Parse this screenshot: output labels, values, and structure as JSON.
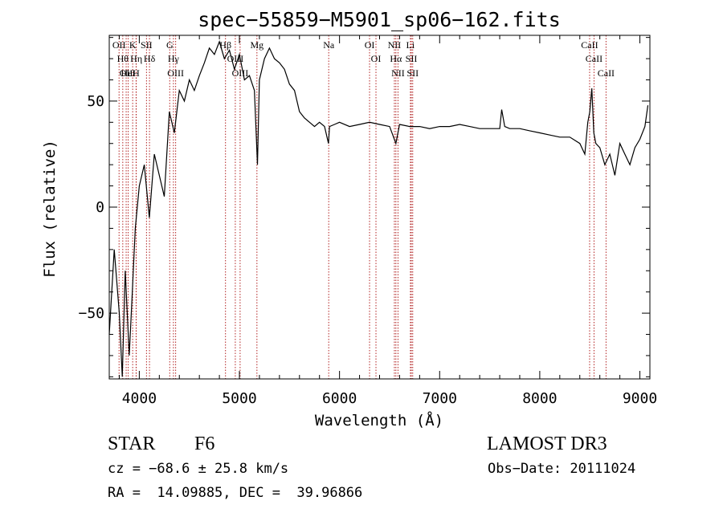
{
  "chart_data": {
    "type": "line",
    "title": "spec−55859−M5901_sp06−162.fits",
    "xlabel": "Wavelength (Å)",
    "ylabel": "Flux (relative)",
    "xlim": [
      3700,
      9100
    ],
    "ylim": [
      -81,
      81
    ],
    "xticks": [
      4000,
      5000,
      6000,
      7000,
      8000,
      9000
    ],
    "xtick_labels": [
      "4000",
      "5000",
      "6000",
      "7000",
      "8000",
      "9000"
    ],
    "yticks": [
      -50,
      0,
      50
    ],
    "ytick_labels": [
      "−50",
      "0",
      "50"
    ],
    "series": [
      {
        "name": "spectrum",
        "x": [
          3700,
          3750,
          3800,
          3830,
          3860,
          3900,
          3930,
          3960,
          4000,
          4050,
          4100,
          4150,
          4200,
          4250,
          4300,
          4350,
          4400,
          4450,
          4500,
          4550,
          4600,
          4650,
          4700,
          4750,
          4800,
          4850,
          4900,
          4950,
          5000,
          5050,
          5100,
          5150,
          5180,
          5200,
          5250,
          5300,
          5350,
          5400,
          5450,
          5500,
          5550,
          5600,
          5650,
          5700,
          5750,
          5800,
          5850,
          5890,
          5900,
          5950,
          6000,
          6100,
          6200,
          6300,
          6400,
          6500,
          6563,
          6600,
          6700,
          6800,
          6900,
          7000,
          7100,
          7200,
          7300,
          7400,
          7500,
          7600,
          7620,
          7650,
          7700,
          7800,
          7900,
          8000,
          8100,
          8200,
          8300,
          8400,
          8450,
          8480,
          8500,
          8520,
          8540,
          8560,
          8600,
          8650,
          8700,
          8750,
          8800,
          8850,
          8900,
          8950,
          9000,
          9050,
          9080
        ],
        "y": [
          -60,
          -20,
          -50,
          -80,
          -30,
          -70,
          -40,
          -10,
          10,
          20,
          -5,
          25,
          15,
          5,
          45,
          35,
          55,
          50,
          60,
          55,
          62,
          68,
          75,
          72,
          78,
          70,
          74,
          65,
          72,
          60,
          62,
          55,
          20,
          60,
          70,
          75,
          70,
          68,
          65,
          58,
          55,
          45,
          42,
          40,
          38,
          40,
          38,
          30,
          38,
          39,
          40,
          38,
          39,
          40,
          39,
          38,
          30,
          39,
          38,
          38,
          37,
          38,
          38,
          39,
          38,
          37,
          37,
          37,
          46,
          38,
          37,
          37,
          36,
          35,
          34,
          33,
          33,
          30,
          25,
          40,
          45,
          56,
          35,
          30,
          28,
          20,
          25,
          15,
          30,
          25,
          20,
          28,
          32,
          38,
          48
        ]
      }
    ],
    "lines": [
      {
        "x": 3798,
        "label": "OII"
      },
      {
        "x": 3835,
        "label": "Hθ"
      },
      {
        "x": 3869,
        "label": "OII"
      },
      {
        "x": 3889,
        "label": "HeI"
      },
      {
        "x": 3934,
        "label": "K"
      },
      {
        "x": 3970,
        "label": "Hη"
      },
      {
        "x": 3968,
        "label": "H"
      },
      {
        "x": 4072,
        "label": "SII"
      },
      {
        "x": 4102,
        "label": "Hδ"
      },
      {
        "x": 4304,
        "label": "G"
      },
      {
        "x": 4341,
        "label": "Hγ"
      },
      {
        "x": 4363,
        "label": "OIII"
      },
      {
        "x": 4861,
        "label": "Hβ"
      },
      {
        "x": 4959,
        "label": "OIII"
      },
      {
        "x": 5007,
        "label": "OIII"
      },
      {
        "x": 5175,
        "label": "Mg"
      },
      {
        "x": 5892,
        "label": "Na"
      },
      {
        "x": 6300,
        "label": "OI"
      },
      {
        "x": 6364,
        "label": "OI"
      },
      {
        "x": 6548,
        "label": "NII"
      },
      {
        "x": 6563,
        "label": "Hα"
      },
      {
        "x": 6584,
        "label": "NII"
      },
      {
        "x": 6708,
        "label": "Li"
      },
      {
        "x": 6717,
        "label": "SII"
      },
      {
        "x": 6731,
        "label": "SII"
      },
      {
        "x": 8498,
        "label": "CaII"
      },
      {
        "x": 8542,
        "label": "CaII"
      },
      {
        "x": 8662,
        "label": "CaII"
      }
    ]
  },
  "info": {
    "object_class": "STAR",
    "subclass": "F6",
    "survey": "LAMOST DR3",
    "cz": "cz = −68.6 ± 25.8 km/s",
    "obs_date": "Obs−Date: 20111024",
    "radec": "RA =  14.09885, DEC =  39.96866"
  }
}
